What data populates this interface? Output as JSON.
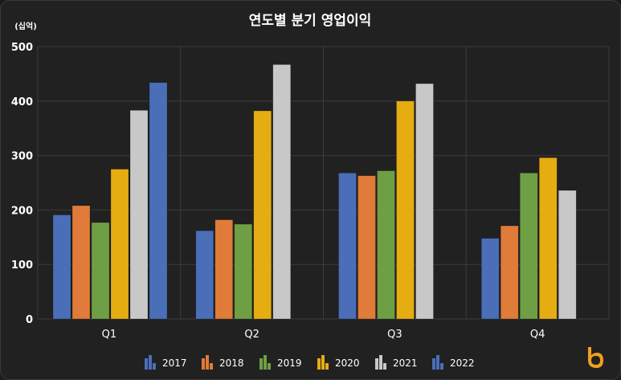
{
  "chart_data": {
    "type": "bar",
    "title": "연도별 분기 영업이익",
    "unit_label": "(십억)",
    "xlabel": "",
    "ylabel": "",
    "ylim": [
      0,
      500
    ],
    "yticks": [
      0,
      100,
      200,
      300,
      400,
      500
    ],
    "categories": [
      "Q1",
      "Q2",
      "Q3",
      "Q4"
    ],
    "grid": true,
    "legend_position": "bottom-center",
    "series": [
      {
        "name": "2017",
        "color": "#4a6fb8",
        "values": [
          191,
          162,
          268,
          148
        ]
      },
      {
        "name": "2018",
        "color": "#e07b39",
        "values": [
          208,
          182,
          263,
          171
        ]
      },
      {
        "name": "2019",
        "color": "#6f9f45",
        "values": [
          177,
          174,
          272,
          268
        ]
      },
      {
        "name": "2020",
        "color": "#e6ad12",
        "values": [
          275,
          382,
          400,
          296
        ]
      },
      {
        "name": "2021",
        "color": "#c8c8c8",
        "values": [
          383,
          467,
          432,
          236
        ]
      },
      {
        "name": "2022",
        "color": "#4a6fb8",
        "values": [
          434,
          null,
          null,
          null
        ]
      }
    ]
  },
  "brand": {
    "logo_icon": "brand-b-logo-icon",
    "accent": "#f0a020"
  }
}
